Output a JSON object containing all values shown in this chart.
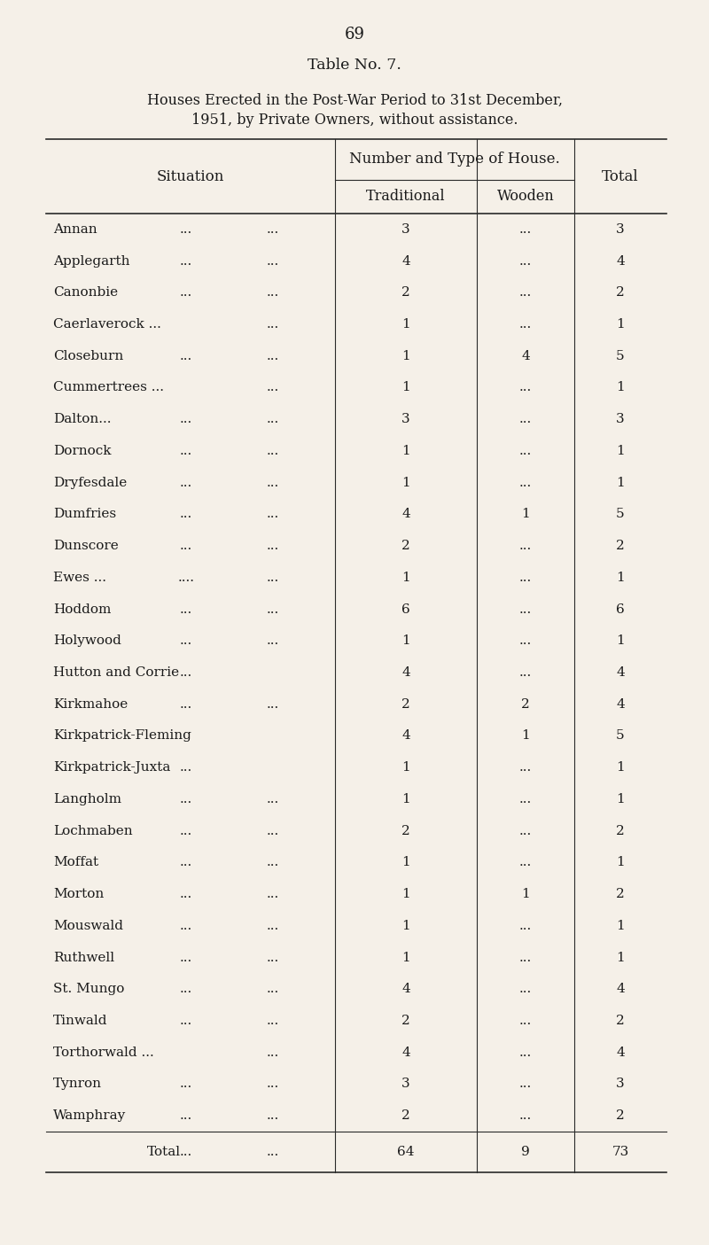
{
  "page_number": "69",
  "table_title": "Table No. 7.",
  "subtitle_line1": "Houses Erected in the Post-War Period to 31st December,",
  "subtitle_line2": "1951, by Private Owners, without assistance.",
  "col_header_span": "Number and Type of House.",
  "data_rows": [
    {
      "situation": "Annan",
      "dots1": "...",
      "dots2": "...",
      "traditional": "3",
      "wooden": "...",
      "total": "3"
    },
    {
      "situation": "Applegarth",
      "dots1": "...",
      "dots2": "...",
      "traditional": "4",
      "wooden": "...",
      "total": "4"
    },
    {
      "situation": "Canonbie",
      "dots1": "...",
      "dots2": "...",
      "traditional": "2",
      "wooden": "...",
      "total": "2"
    },
    {
      "situation": "Caerlaverock ...",
      "dots1": "",
      "dots2": "...",
      "traditional": "1",
      "wooden": "...",
      "total": "1"
    },
    {
      "situation": "Closeburn",
      "dots1": "...",
      "dots2": "...",
      "traditional": "1",
      "wooden": "4",
      "total": "5"
    },
    {
      "situation": "Cummertrees ...",
      "dots1": "",
      "dots2": "...",
      "traditional": "1",
      "wooden": "...",
      "total": "1"
    },
    {
      "situation": "Dalton...",
      "dots1": "...",
      "dots2": "...",
      "traditional": "3",
      "wooden": "...",
      "total": "3"
    },
    {
      "situation": "Dornock",
      "dots1": "...",
      "dots2": "...",
      "traditional": "1",
      "wooden": "...",
      "total": "1"
    },
    {
      "situation": "Dryfesdale",
      "dots1": "...",
      "dots2": "...",
      "traditional": "1",
      "wooden": "...",
      "total": "1"
    },
    {
      "situation": "Dumfries",
      "dots1": "...",
      "dots2": "...",
      "traditional": "4",
      "wooden": "1",
      "total": "5"
    },
    {
      "situation": "Dunscore",
      "dots1": "...",
      "dots2": "...",
      "traditional": "2",
      "wooden": "...",
      "total": "2"
    },
    {
      "situation": "Ewes ...",
      "dots1": "....",
      "dots2": "...",
      "traditional": "1",
      "wooden": "...",
      "total": "1"
    },
    {
      "situation": "Hoddom",
      "dots1": "...",
      "dots2": "...",
      "traditional": "6",
      "wooden": "...",
      "total": "6"
    },
    {
      "situation": "Holywood",
      "dots1": "...",
      "dots2": "...",
      "traditional": "1",
      "wooden": "...",
      "total": "1"
    },
    {
      "situation": "Hutton and Corrie",
      "dots1": "...",
      "dots2": "",
      "traditional": "4",
      "wooden": "...",
      "total": "4"
    },
    {
      "situation": "Kirkmahoe",
      "dots1": "...",
      "dots2": "...",
      "traditional": "2",
      "wooden": "2",
      "total": "4"
    },
    {
      "situation": "Kirkpatrick-Fleming",
      "dots1": "",
      "dots2": "",
      "traditional": "4",
      "wooden": "1",
      "total": "5"
    },
    {
      "situation": "Kirkpatrick-Juxta",
      "dots1": "...",
      "dots2": "",
      "traditional": "1",
      "wooden": "...",
      "total": "1"
    },
    {
      "situation": "Langholm",
      "dots1": "...",
      "dots2": "...",
      "traditional": "1",
      "wooden": "...",
      "total": "1"
    },
    {
      "situation": "Lochmaben",
      "dots1": "...",
      "dots2": "...",
      "traditional": "2",
      "wooden": "...",
      "total": "2"
    },
    {
      "situation": "Moffat",
      "dots1": "...",
      "dots2": "...",
      "traditional": "1",
      "wooden": "...",
      "total": "1"
    },
    {
      "situation": "Morton",
      "dots1": "...",
      "dots2": "...",
      "traditional": "1",
      "wooden": "1",
      "total": "2"
    },
    {
      "situation": "Mouswald",
      "dots1": "...",
      "dots2": "...",
      "traditional": "1",
      "wooden": "...",
      "total": "1"
    },
    {
      "situation": "Ruthwell",
      "dots1": "...",
      "dots2": "...",
      "traditional": "1",
      "wooden": "...",
      "total": "1"
    },
    {
      "situation": "St. Mungo",
      "dots1": "...",
      "dots2": "...",
      "traditional": "4",
      "wooden": "...",
      "total": "4"
    },
    {
      "situation": "Tinwald",
      "dots1": "...",
      "dots2": "...",
      "traditional": "2",
      "wooden": "...",
      "total": "2"
    },
    {
      "situation": "Torthorwald ...",
      "dots1": "",
      "dots2": "...",
      "traditional": "4",
      "wooden": "...",
      "total": "4"
    },
    {
      "situation": "Tynron",
      "dots1": "...",
      "dots2": "...",
      "traditional": "3",
      "wooden": "...",
      "total": "3"
    },
    {
      "situation": "Wamphray",
      "dots1": "...",
      "dots2": "...",
      "traditional": "2",
      "wooden": "...",
      "total": "2"
    }
  ],
  "total_row": {
    "situation": "Total",
    "dots1": "...",
    "dots2": "...",
    "traditional": "64",
    "wooden": "9",
    "total": "73"
  },
  "bg_color": "#f5f0e8",
  "text_color": "#1a1a1a",
  "line_color": "#2a2a2a"
}
